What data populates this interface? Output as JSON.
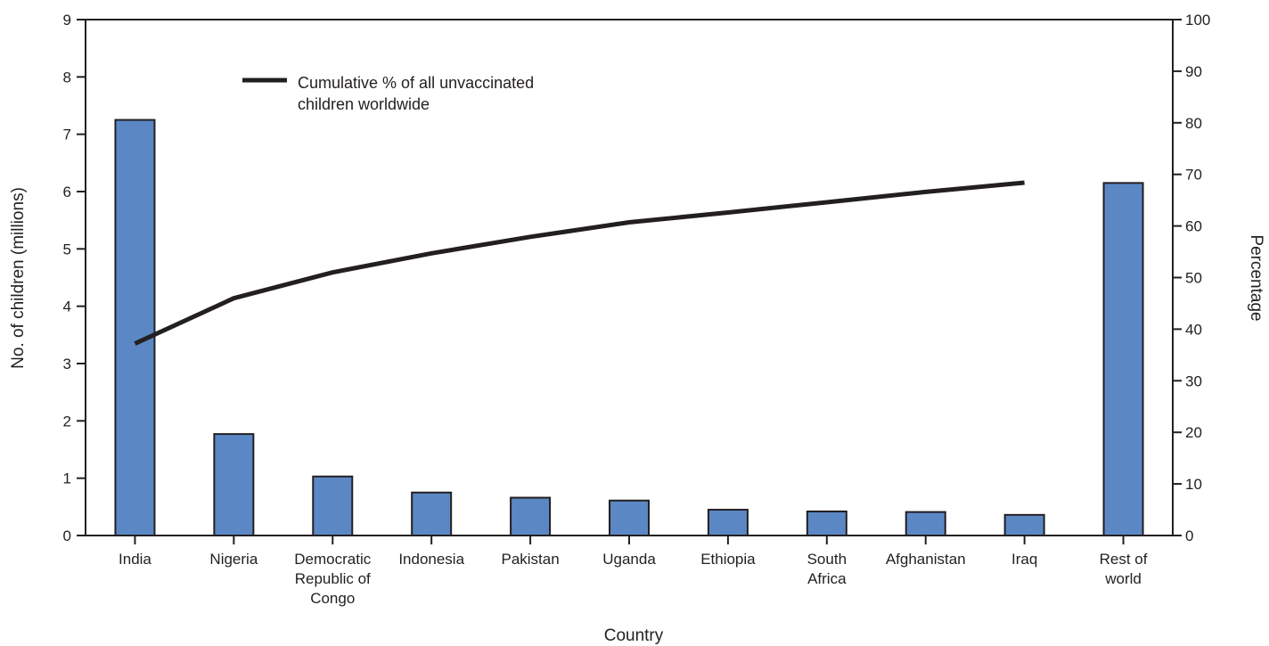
{
  "chart_data": {
    "type": "bar",
    "categories": [
      [
        "India"
      ],
      [
        "Nigeria"
      ],
      [
        "Democratic",
        "Republic of",
        "Congo"
      ],
      [
        "Indonesia"
      ],
      [
        "Pakistan"
      ],
      [
        "Uganda"
      ],
      [
        "Ethiopia"
      ],
      [
        "South",
        "Africa"
      ],
      [
        "Afghanistan"
      ],
      [
        "Iraq"
      ],
      [
        "Rest of",
        "world"
      ]
    ],
    "values": [
      7.25,
      1.77,
      1.03,
      0.75,
      0.66,
      0.61,
      0.45,
      0.42,
      0.41,
      0.36,
      6.15
    ],
    "bar_color": "#5b87c5",
    "line_color": "#231f20",
    "series": [
      {
        "name": "Cumulative % of all unvaccinated children worldwide",
        "values": [
          37.2,
          46.0,
          51.0,
          54.7,
          57.9,
          60.7,
          62.6,
          64.6,
          66.6,
          68.4,
          null
        ]
      }
    ],
    "legend_lines": [
      "Cumulative % of all unvaccinated",
      "children worldwide"
    ],
    "xlabel": "Country",
    "ylabel": "No. of children (millions)",
    "y2label": "Percentage",
    "ylim": [
      0,
      9
    ],
    "y2lim": [
      0,
      100
    ],
    "yticks": [
      "0",
      "1",
      "2",
      "3",
      "4",
      "5",
      "6",
      "7",
      "8",
      "9"
    ],
    "y2ticks": [
      "0",
      "10",
      "20",
      "30",
      "40",
      "50",
      "60",
      "70",
      "80",
      "90",
      "100"
    ],
    "grid": false,
    "legend_position": "top-left"
  }
}
